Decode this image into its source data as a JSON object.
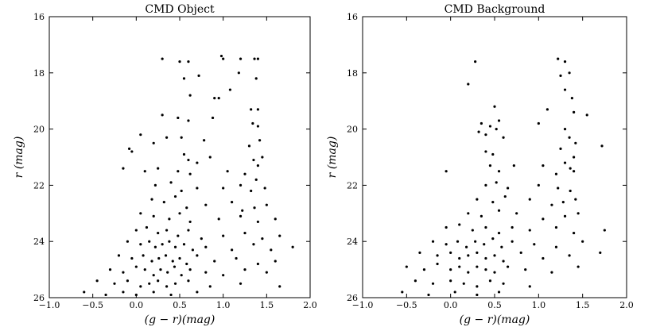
{
  "chart_data": [
    {
      "type": "scatter",
      "title": "CMD Object",
      "xlabel": "(g − r)(mag)",
      "ylabel": "r (mag)",
      "xlim": [
        -1.0,
        2.0
      ],
      "ylim": [
        26,
        16
      ],
      "y_inverted": true,
      "x_ticks": [
        -1.0,
        -0.5,
        0.0,
        0.5,
        1.0,
        1.5,
        2.0
      ],
      "x_tick_labels": [
        "−1.0",
        "−0.5",
        "0.0",
        "0.5",
        "1.0",
        "1.5",
        "2.0"
      ],
      "y_ticks": [
        16,
        18,
        20,
        22,
        24,
        26
      ],
      "y_tick_labels": [
        "16",
        "18",
        "20",
        "22",
        "24",
        "26"
      ],
      "grid": false,
      "marker_color": "#000000",
      "points": [
        [
          0.6,
          17.6
        ],
        [
          0.5,
          17.6
        ],
        [
          0.3,
          17.5
        ],
        [
          0.98,
          17.4
        ],
        [
          1.0,
          17.5
        ],
        [
          1.2,
          17.5
        ],
        [
          1.36,
          17.5
        ],
        [
          1.4,
          17.5
        ],
        [
          0.55,
          18.2
        ],
        [
          0.72,
          18.1
        ],
        [
          1.18,
          18.0
        ],
        [
          1.38,
          18.2
        ],
        [
          0.9,
          18.9
        ],
        [
          0.95,
          18.9
        ],
        [
          1.08,
          18.6
        ],
        [
          0.62,
          18.8
        ],
        [
          1.32,
          19.3
        ],
        [
          1.4,
          19.3
        ],
        [
          0.3,
          19.5
        ],
        [
          0.48,
          19.6
        ],
        [
          0.6,
          19.7
        ],
        [
          0.88,
          19.6
        ],
        [
          1.34,
          19.8
        ],
        [
          1.4,
          19.9
        ],
        [
          0.05,
          20.2
        ],
        [
          0.35,
          20.3
        ],
        [
          0.52,
          20.3
        ],
        [
          0.78,
          20.4
        ],
        [
          1.3,
          20.6
        ],
        [
          1.42,
          20.4
        ],
        [
          -0.08,
          20.7
        ],
        [
          -0.05,
          20.8
        ],
        [
          0.2,
          20.5
        ],
        [
          0.55,
          20.9
        ],
        [
          0.6,
          21.1
        ],
        [
          0.7,
          21.2
        ],
        [
          0.85,
          21.0
        ],
        [
          1.35,
          21.1
        ],
        [
          1.4,
          21.3
        ],
        [
          1.45,
          21.0
        ],
        [
          -0.15,
          21.4
        ],
        [
          0.1,
          21.5
        ],
        [
          0.25,
          21.4
        ],
        [
          0.48,
          21.5
        ],
        [
          0.62,
          21.6
        ],
        [
          1.05,
          21.5
        ],
        [
          1.25,
          21.6
        ],
        [
          1.38,
          21.8
        ],
        [
          0.22,
          22.0
        ],
        [
          0.4,
          21.9
        ],
        [
          0.52,
          22.2
        ],
        [
          0.7,
          22.1
        ],
        [
          1.0,
          22.1
        ],
        [
          1.2,
          22.0
        ],
        [
          1.32,
          22.2
        ],
        [
          1.48,
          22.1
        ],
        [
          0.18,
          22.5
        ],
        [
          0.32,
          22.6
        ],
        [
          0.45,
          22.4
        ],
        [
          0.58,
          22.8
        ],
        [
          0.8,
          22.7
        ],
        [
          1.1,
          22.6
        ],
        [
          1.22,
          22.9
        ],
        [
          1.36,
          22.8
        ],
        [
          1.5,
          22.7
        ],
        [
          0.05,
          23.0
        ],
        [
          0.2,
          23.1
        ],
        [
          0.38,
          23.2
        ],
        [
          0.5,
          23.0
        ],
        [
          0.62,
          23.3
        ],
        [
          0.95,
          23.2
        ],
        [
          1.2,
          23.1
        ],
        [
          1.4,
          23.3
        ],
        [
          1.6,
          23.2
        ],
        [
          0.0,
          23.6
        ],
        [
          0.12,
          23.5
        ],
        [
          0.25,
          23.7
        ],
        [
          0.35,
          23.6
        ],
        [
          0.48,
          23.8
        ],
        [
          0.6,
          23.6
        ],
        [
          0.75,
          23.9
        ],
        [
          1.0,
          23.8
        ],
        [
          1.25,
          23.7
        ],
        [
          1.45,
          23.9
        ],
        [
          1.65,
          23.8
        ],
        [
          -0.1,
          24.0
        ],
        [
          0.05,
          24.1
        ],
        [
          0.15,
          24.0
        ],
        [
          0.22,
          24.2
        ],
        [
          0.3,
          24.1
        ],
        [
          0.38,
          24.0
        ],
        [
          0.45,
          24.2
        ],
        [
          0.55,
          24.1
        ],
        [
          0.65,
          24.3
        ],
        [
          0.8,
          24.2
        ],
        [
          1.1,
          24.3
        ],
        [
          1.35,
          24.1
        ],
        [
          1.55,
          24.3
        ],
        [
          1.8,
          24.2
        ],
        [
          -0.2,
          24.5
        ],
        [
          -0.05,
          24.6
        ],
        [
          0.08,
          24.5
        ],
        [
          0.18,
          24.7
        ],
        [
          0.26,
          24.6
        ],
        [
          0.34,
          24.5
        ],
        [
          0.42,
          24.7
        ],
        [
          0.5,
          24.6
        ],
        [
          0.58,
          24.8
        ],
        [
          0.7,
          24.5
        ],
        [
          0.9,
          24.7
        ],
        [
          1.15,
          24.6
        ],
        [
          1.4,
          24.8
        ],
        [
          1.6,
          24.7
        ],
        [
          -0.3,
          25.0
        ],
        [
          -0.15,
          25.1
        ],
        [
          0.0,
          24.9
        ],
        [
          0.1,
          25.0
        ],
        [
          0.2,
          25.2
        ],
        [
          0.28,
          25.0
        ],
        [
          0.36,
          25.1
        ],
        [
          0.44,
          24.9
        ],
        [
          0.52,
          25.2
        ],
        [
          0.62,
          25.0
        ],
        [
          0.8,
          25.1
        ],
        [
          1.0,
          25.2
        ],
        [
          1.25,
          25.0
        ],
        [
          1.5,
          25.1
        ],
        [
          -0.45,
          25.4
        ],
        [
          -0.25,
          25.5
        ],
        [
          -0.1,
          25.4
        ],
        [
          0.05,
          25.6
        ],
        [
          0.15,
          25.5
        ],
        [
          0.25,
          25.4
        ],
        [
          0.35,
          25.6
        ],
        [
          0.45,
          25.5
        ],
        [
          0.6,
          25.4
        ],
        [
          0.85,
          25.6
        ],
        [
          1.2,
          25.5
        ],
        [
          1.65,
          25.6
        ],
        [
          -0.6,
          25.8
        ],
        [
          -0.35,
          25.9
        ],
        [
          -0.15,
          25.8
        ],
        [
          0.0,
          25.9
        ],
        [
          0.2,
          25.8
        ],
        [
          0.4,
          25.9
        ],
        [
          0.7,
          25.8
        ]
      ]
    },
    {
      "type": "scatter",
      "title": "CMD Background",
      "xlabel": "(g − r)(mag)",
      "ylabel": "r (mag)",
      "xlim": [
        -1.0,
        2.0
      ],
      "ylim": [
        26,
        16
      ],
      "y_inverted": true,
      "x_ticks": [
        -1.0,
        -0.5,
        0.0,
        0.5,
        1.0,
        1.5,
        2.0
      ],
      "x_tick_labels": [
        "−1.0",
        "−0.5",
        "0.0",
        "0.5",
        "1.0",
        "1.5",
        "2.0"
      ],
      "y_ticks": [
        16,
        18,
        20,
        22,
        24,
        26
      ],
      "y_tick_labels": [
        "16",
        "18",
        "20",
        "22",
        "24",
        "26"
      ],
      "grid": false,
      "marker_color": "#000000",
      "points": [
        [
          0.28,
          17.6
        ],
        [
          1.22,
          17.5
        ],
        [
          1.3,
          17.6
        ],
        [
          1.25,
          18.1
        ],
        [
          1.35,
          18.0
        ],
        [
          0.2,
          18.4
        ],
        [
          1.3,
          18.6
        ],
        [
          1.38,
          18.9
        ],
        [
          0.5,
          19.2
        ],
        [
          1.1,
          19.3
        ],
        [
          1.4,
          19.4
        ],
        [
          1.55,
          19.5
        ],
        [
          0.35,
          19.8
        ],
        [
          0.45,
          19.9
        ],
        [
          0.55,
          19.7
        ],
        [
          1.0,
          19.8
        ],
        [
          1.3,
          20.0
        ],
        [
          0.32,
          20.1
        ],
        [
          0.4,
          20.2
        ],
        [
          0.52,
          20.0
        ],
        [
          0.6,
          20.3
        ],
        [
          1.35,
          20.3
        ],
        [
          1.42,
          20.5
        ],
        [
          1.72,
          20.6
        ],
        [
          0.4,
          20.8
        ],
        [
          0.48,
          20.9
        ],
        [
          1.25,
          20.7
        ],
        [
          1.4,
          21.0
        ],
        [
          1.3,
          21.2
        ],
        [
          1.36,
          21.4
        ],
        [
          0.45,
          21.3
        ],
        [
          0.55,
          21.5
        ],
        [
          0.72,
          21.3
        ],
        [
          1.05,
          21.3
        ],
        [
          1.2,
          21.6
        ],
        [
          1.4,
          21.5
        ],
        [
          -0.05,
          21.5
        ],
        [
          0.4,
          22.0
        ],
        [
          0.52,
          21.9
        ],
        [
          0.65,
          22.1
        ],
        [
          1.0,
          22.0
        ],
        [
          1.22,
          22.1
        ],
        [
          1.36,
          22.2
        ],
        [
          0.3,
          22.5
        ],
        [
          0.48,
          22.6
        ],
        [
          0.62,
          22.4
        ],
        [
          0.9,
          22.5
        ],
        [
          1.15,
          22.7
        ],
        [
          1.28,
          22.6
        ],
        [
          1.42,
          22.5
        ],
        [
          0.2,
          23.0
        ],
        [
          0.35,
          23.1
        ],
        [
          0.55,
          22.9
        ],
        [
          0.75,
          23.0
        ],
        [
          1.05,
          23.2
        ],
        [
          1.3,
          23.1
        ],
        [
          1.45,
          23.0
        ],
        [
          -0.05,
          23.5
        ],
        [
          0.1,
          23.4
        ],
        [
          0.25,
          23.6
        ],
        [
          0.4,
          23.5
        ],
        [
          0.55,
          23.7
        ],
        [
          0.7,
          23.5
        ],
        [
          0.9,
          23.6
        ],
        [
          1.2,
          23.5
        ],
        [
          1.4,
          23.7
        ],
        [
          1.75,
          23.6
        ],
        [
          -0.2,
          24.0
        ],
        [
          -0.05,
          24.1
        ],
        [
          0.08,
          24.0
        ],
        [
          0.18,
          24.2
        ],
        [
          0.28,
          24.0
        ],
        [
          0.38,
          24.1
        ],
        [
          0.48,
          23.9
        ],
        [
          0.58,
          24.2
        ],
        [
          0.7,
          24.0
        ],
        [
          0.95,
          24.1
        ],
        [
          1.2,
          24.2
        ],
        [
          1.5,
          24.0
        ],
        [
          -0.35,
          24.4
        ],
        [
          -0.15,
          24.5
        ],
        [
          0.0,
          24.4
        ],
        [
          0.1,
          24.6
        ],
        [
          0.2,
          24.5
        ],
        [
          0.3,
          24.4
        ],
        [
          0.4,
          24.6
        ],
        [
          0.5,
          24.5
        ],
        [
          0.6,
          24.7
        ],
        [
          0.8,
          24.4
        ],
        [
          1.05,
          24.6
        ],
        [
          1.35,
          24.5
        ],
        [
          1.7,
          24.4
        ],
        [
          -0.5,
          24.9
        ],
        [
          -0.3,
          25.0
        ],
        [
          -0.15,
          24.8
        ],
        [
          0.0,
          25.0
        ],
        [
          0.1,
          24.9
        ],
        [
          0.2,
          25.1
        ],
        [
          0.3,
          24.9
        ],
        [
          0.4,
          25.0
        ],
        [
          0.5,
          25.1
        ],
        [
          0.65,
          24.9
        ],
        [
          0.85,
          25.0
        ],
        [
          1.15,
          25.1
        ],
        [
          1.45,
          24.9
        ],
        [
          -0.4,
          25.4
        ],
        [
          -0.2,
          25.5
        ],
        [
          0.0,
          25.4
        ],
        [
          0.15,
          25.5
        ],
        [
          0.3,
          25.6
        ],
        [
          0.45,
          25.4
        ],
        [
          0.6,
          25.5
        ],
        [
          0.9,
          25.6
        ],
        [
          -0.55,
          25.8
        ],
        [
          -0.25,
          25.9
        ],
        [
          0.05,
          25.8
        ],
        [
          0.3,
          25.9
        ],
        [
          0.55,
          25.8
        ]
      ]
    }
  ]
}
